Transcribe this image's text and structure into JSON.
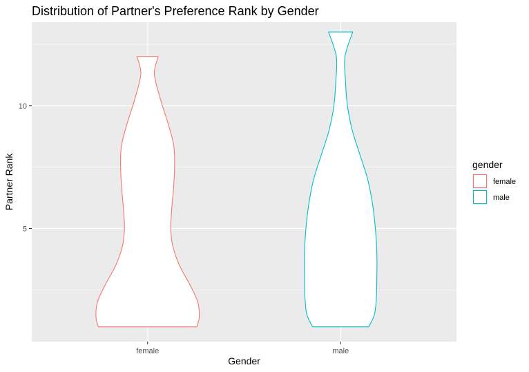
{
  "chart_data": {
    "type": "violin",
    "title": "Distribution of Partner's Preference Rank by Gender",
    "xlabel": "Gender",
    "ylabel": "Partner Rank",
    "categories": [
      "female",
      "male"
    ],
    "ylim": [
      0.4,
      13.4
    ],
    "y_major_ticks": [
      5,
      10
    ],
    "y_minor_ticks": [
      2.5,
      7.5,
      12.5
    ],
    "grid": true,
    "legend": {
      "title": "gender",
      "position": "right",
      "entries": [
        {
          "label": "female",
          "color": "#F8766D"
        },
        {
          "label": "male",
          "color": "#00BFC4"
        }
      ]
    },
    "series": [
      {
        "name": "female",
        "color": "#F8766D",
        "profile": [
          {
            "y": 1.0,
            "half_width": 0.51
          },
          {
            "y": 1.4,
            "half_width": 0.535
          },
          {
            "y": 2.0,
            "half_width": 0.52
          },
          {
            "y": 2.7,
            "half_width": 0.44
          },
          {
            "y": 3.5,
            "half_width": 0.33
          },
          {
            "y": 4.3,
            "half_width": 0.26
          },
          {
            "y": 5.0,
            "half_width": 0.24
          },
          {
            "y": 5.8,
            "half_width": 0.25
          },
          {
            "y": 6.7,
            "half_width": 0.27
          },
          {
            "y": 7.6,
            "half_width": 0.28
          },
          {
            "y": 8.4,
            "half_width": 0.27
          },
          {
            "y": 9.3,
            "half_width": 0.21
          },
          {
            "y": 10.3,
            "half_width": 0.13
          },
          {
            "y": 11.3,
            "half_width": 0.07
          },
          {
            "y": 12.0,
            "half_width": 0.11
          }
        ]
      },
      {
        "name": "male",
        "color": "#00BFC4",
        "profile": [
          {
            "y": 1.0,
            "half_width": 0.29
          },
          {
            "y": 1.5,
            "half_width": 0.35
          },
          {
            "y": 2.2,
            "half_width": 0.37
          },
          {
            "y": 3.0,
            "half_width": 0.375
          },
          {
            "y": 4.0,
            "half_width": 0.375
          },
          {
            "y": 5.0,
            "half_width": 0.36
          },
          {
            "y": 6.0,
            "half_width": 0.33
          },
          {
            "y": 7.0,
            "half_width": 0.28
          },
          {
            "y": 8.0,
            "half_width": 0.2
          },
          {
            "y": 9.0,
            "half_width": 0.12
          },
          {
            "y": 10.0,
            "half_width": 0.07
          },
          {
            "y": 11.0,
            "half_width": 0.05
          },
          {
            "y": 12.0,
            "half_width": 0.045
          },
          {
            "y": 13.0,
            "half_width": 0.125
          }
        ]
      }
    ]
  }
}
